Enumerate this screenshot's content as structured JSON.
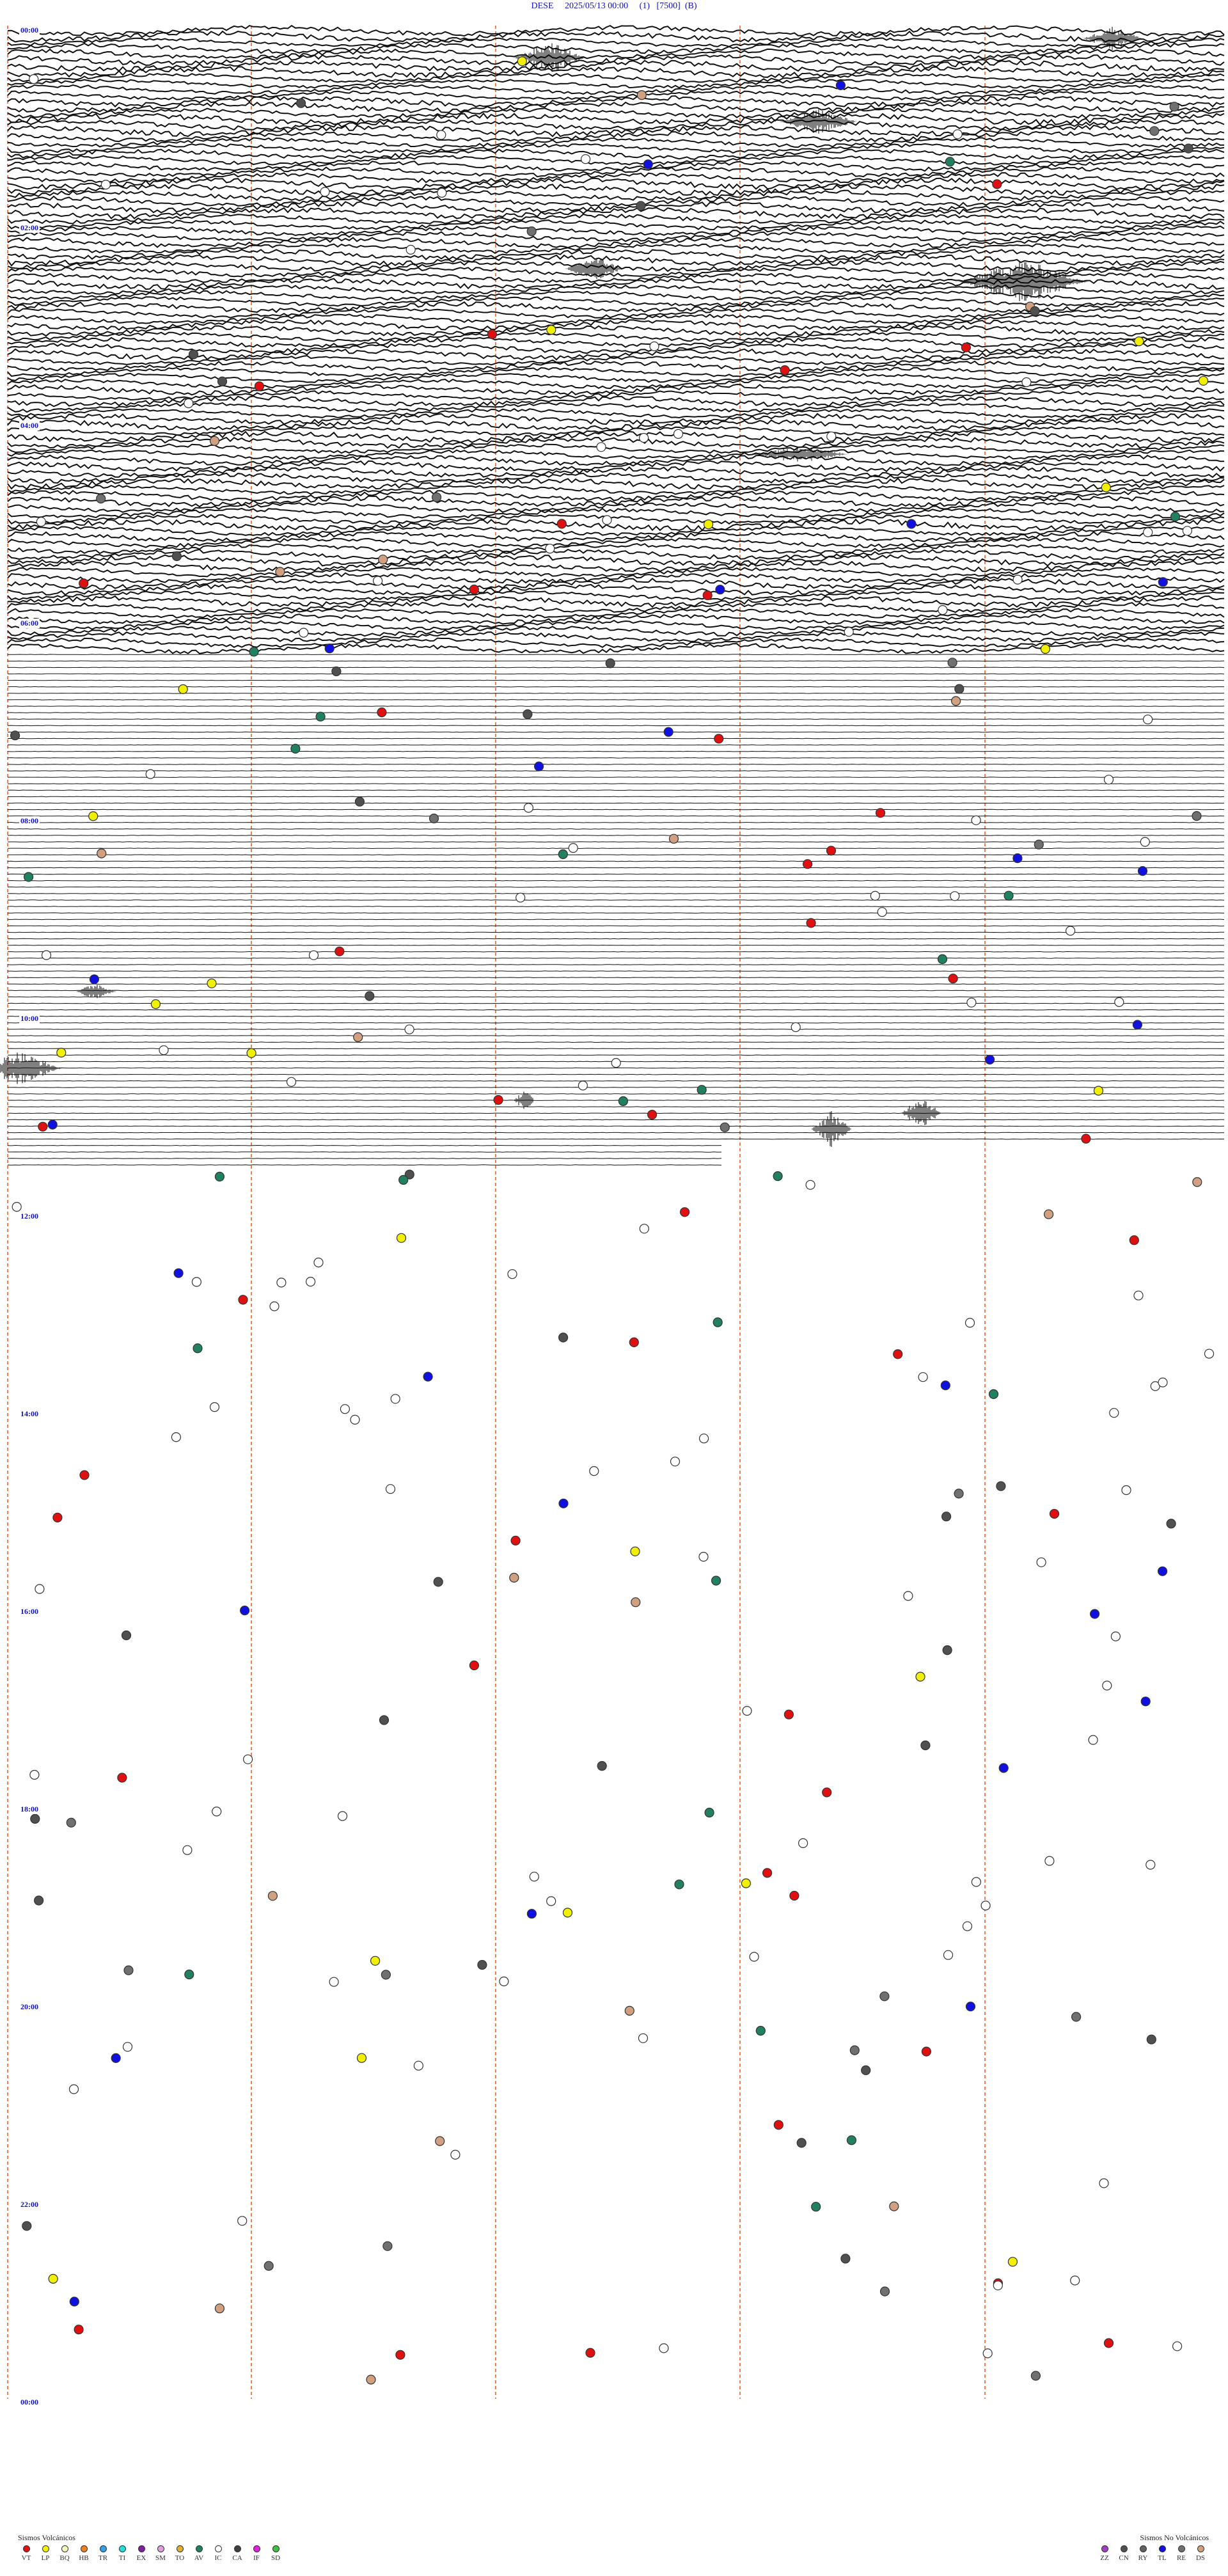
{
  "header": {
    "station": "DESE",
    "datetime": "2025/05/13 00:00",
    "component": "(1)",
    "scale": "[7500]",
    "flag": "(B)"
  },
  "time_labels": [
    "00:00",
    "02:00",
    "04:00",
    "06:00",
    "08:00",
    "10:00",
    "12:00",
    "14:00",
    "16:00",
    "18:00",
    "20:00",
    "22:00",
    "00:00"
  ],
  "legend_volcanic": {
    "title": "Sismos Volcánicos",
    "items": [
      {
        "code": "VT",
        "color": "#e01010"
      },
      {
        "code": "LP",
        "color": "#f0f000"
      },
      {
        "code": "BQ",
        "color": "#f5f5c0"
      },
      {
        "code": "HB",
        "color": "#f08020"
      },
      {
        "code": "TR",
        "color": "#30a0f0"
      },
      {
        "code": "TI",
        "color": "#20e0e0"
      },
      {
        "code": "EX",
        "color": "#8020a0"
      },
      {
        "code": "SM",
        "color": "#e0a0e0"
      },
      {
        "code": "TO",
        "color": "#e0b030"
      },
      {
        "code": "AV",
        "color": "#208060"
      },
      {
        "code": "IC",
        "color": "#ffffff"
      },
      {
        "code": "CA",
        "color": "#404040"
      },
      {
        "code": "IF",
        "color": "#e020e0"
      },
      {
        "code": "SD",
        "color": "#40c040"
      }
    ]
  },
  "legend_nonvolcanic": {
    "title": "Sismos No Volcánicos",
    "items": [
      {
        "code": "ZZ",
        "color": "#a040c0"
      },
      {
        "code": "CN",
        "color": "#505050"
      },
      {
        "code": "RY",
        "color": "#606060"
      },
      {
        "code": "TL",
        "color": "#1010e0"
      },
      {
        "code": "RE",
        "color": "#707070"
      },
      {
        "code": "DS",
        "color": "#d0a080"
      }
    ]
  }
}
